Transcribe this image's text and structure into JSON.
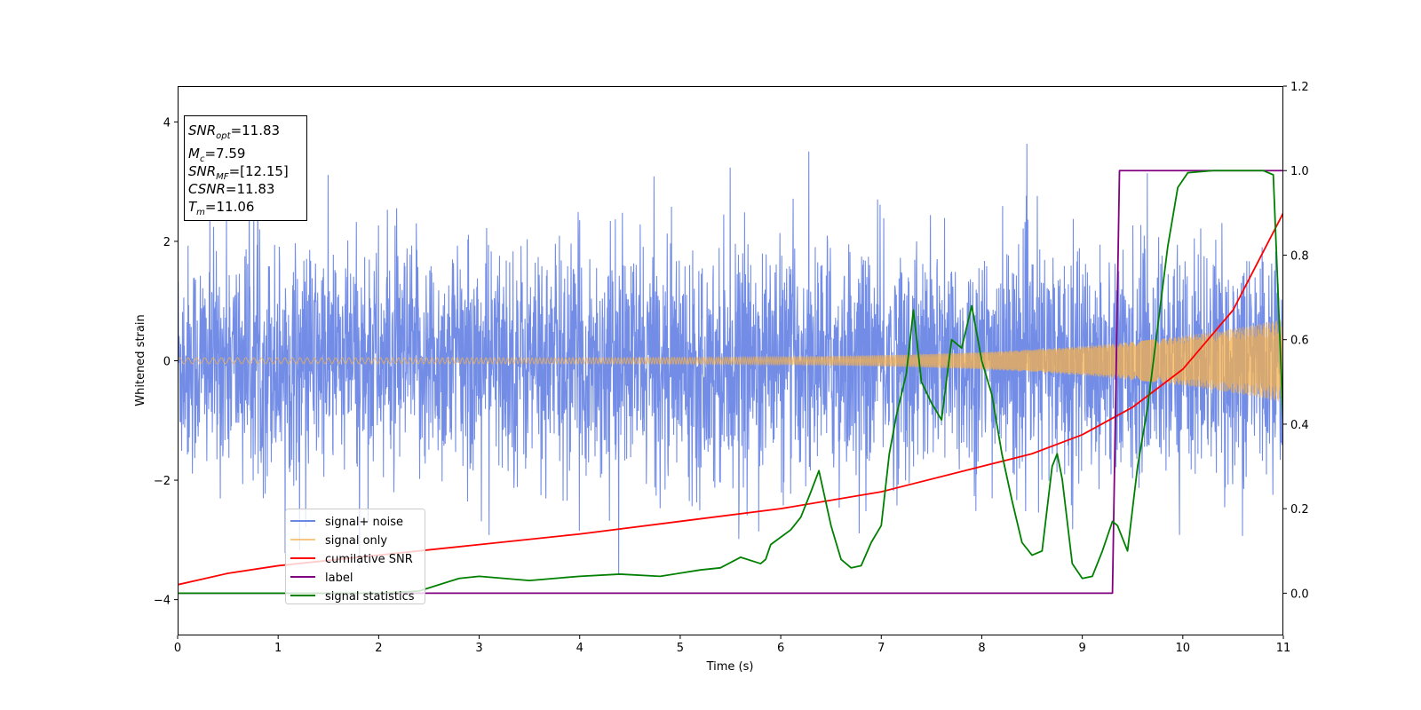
{
  "chart_data": {
    "type": "line",
    "xlabel": "Time (s)",
    "ylabel": "Whitened strain",
    "xlim": [
      0,
      11
    ],
    "ylim_left": [
      -4.6,
      4.6
    ],
    "ylim_right": [
      -0.1,
      1.2
    ],
    "x_ticks": [
      "0",
      "1",
      "2",
      "3",
      "4",
      "5",
      "6",
      "7",
      "8",
      "9",
      "10",
      "11"
    ],
    "y_left_ticks": [
      "−4",
      "−2",
      "0",
      "2",
      "4"
    ],
    "y_right_ticks": [
      "0.0",
      "0.2",
      "0.4",
      "0.6",
      "0.8",
      "1.0",
      "1.2"
    ],
    "grid": false,
    "legend_position": "lower-left",
    "stats_box": {
      "snr_opt": {
        "symbol": "SNR",
        "sub": "opt",
        "value": "=11.83"
      },
      "mc": {
        "symbol": "M",
        "sub": "c",
        "value": "=7.59"
      },
      "snr_mf": {
        "symbol": "SNR",
        "sub": "MF",
        "value": "=[12.15]"
      },
      "csnr": {
        "symbol": "CSNR",
        "value": "=11.83"
      },
      "tm": {
        "symbol": "T",
        "sub": "m",
        "value": "=11.06"
      }
    },
    "series": [
      {
        "name": "signal+ noise",
        "axis": "left",
        "color": "#6b87e6",
        "description_std": 1.0,
        "t_range": [
          0,
          11
        ]
      },
      {
        "name": "signal only",
        "axis": "left",
        "color": "#f5b14c",
        "amplitude_start": 0.05,
        "amplitude_end": 0.7,
        "t_range": [
          0,
          11
        ]
      },
      {
        "name": "cumilative SNR",
        "axis": "right",
        "color": "#ff0000",
        "x": [
          0,
          0.5,
          1,
          2,
          3,
          4,
          5,
          6,
          7,
          8,
          8.5,
          9,
          9.5,
          10,
          10.5,
          11
        ],
        "y": [
          0.02,
          0.047,
          0.065,
          0.09,
          0.115,
          0.14,
          0.17,
          0.2,
          0.24,
          0.3,
          0.33,
          0.375,
          0.44,
          0.53,
          0.67,
          0.9
        ]
      },
      {
        "name": "label",
        "axis": "right",
        "color": "#800080",
        "x": [
          0,
          9.3,
          9.37,
          11
        ],
        "y": [
          0,
          0,
          1,
          1
        ]
      },
      {
        "name": "signal statistics",
        "axis": "right",
        "color": "#008000",
        "x": [
          0,
          1,
          2,
          2.4,
          2.8,
          3,
          3.5,
          4,
          4.4,
          4.8,
          5.2,
          5.4,
          5.6,
          5.8,
          5.85,
          5.9,
          6.1,
          6.2,
          6.3,
          6.38,
          6.5,
          6.6,
          6.7,
          6.8,
          6.9,
          7.0,
          7.08,
          7.15,
          7.25,
          7.32,
          7.4,
          7.5,
          7.6,
          7.7,
          7.8,
          7.9,
          8.0,
          8.1,
          8.2,
          8.3,
          8.4,
          8.5,
          8.6,
          8.7,
          8.75,
          8.8,
          8.9,
          9.0,
          9.1,
          9.2,
          9.3,
          9.35,
          9.45,
          9.55,
          9.65,
          9.75,
          9.85,
          9.95,
          10.05,
          10.3,
          10.8,
          10.9,
          11.0
        ],
        "y": [
          0.0,
          0.0,
          0.0,
          0.005,
          0.035,
          0.04,
          0.03,
          0.04,
          0.045,
          0.04,
          0.055,
          0.06,
          0.085,
          0.07,
          0.08,
          0.115,
          0.15,
          0.18,
          0.24,
          0.29,
          0.16,
          0.08,
          0.06,
          0.065,
          0.12,
          0.16,
          0.33,
          0.42,
          0.52,
          0.67,
          0.5,
          0.45,
          0.41,
          0.6,
          0.58,
          0.68,
          0.55,
          0.47,
          0.33,
          0.22,
          0.12,
          0.09,
          0.1,
          0.3,
          0.33,
          0.27,
          0.07,
          0.035,
          0.04,
          0.1,
          0.17,
          0.16,
          0.1,
          0.3,
          0.44,
          0.63,
          0.82,
          0.96,
          0.995,
          1.0,
          1.0,
          0.99,
          0.4
        ]
      }
    ]
  }
}
